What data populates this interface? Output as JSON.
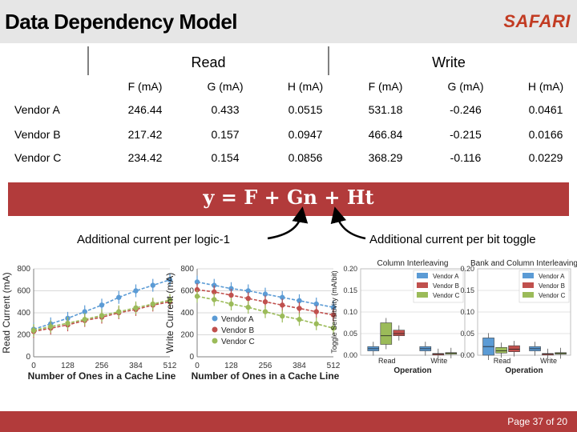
{
  "header": {
    "title": "Data Dependency Model",
    "logo": "SAFARI"
  },
  "table": {
    "groups": [
      "Read",
      "Write"
    ],
    "columns": [
      "F (mA)",
      "G (mA)",
      "H (mA)",
      "F (mA)",
      "G (mA)",
      "H (mA)"
    ],
    "rows": [
      {
        "label": "Vendor A",
        "values": [
          "246.44",
          "0.433",
          "0.0515",
          "531.18",
          "-0.246",
          "0.0461"
        ]
      },
      {
        "label": "Vendor B",
        "values": [
          "217.42",
          "0.157",
          "0.0947",
          "466.84",
          "-0.215",
          "0.0166"
        ]
      },
      {
        "label": "Vendor C",
        "values": [
          "234.42",
          "0.154",
          "0.0856",
          "368.29",
          "-0.116",
          "0.0229"
        ]
      }
    ]
  },
  "equation": "y = F + Gn + Ht",
  "annotations": {
    "left": "Additional current per logic-1",
    "right": "Additional current per bit toggle"
  },
  "colors": {
    "vendor_a": "#5b9bd5",
    "vendor_b": "#c0504d",
    "vendor_c": "#9bbb59",
    "accent": "#b23b3b"
  },
  "chart_data": [
    {
      "type": "line",
      "ylabel": "Read Current (mA)",
      "xlabel": "Number of Ones in a Cache Line",
      "x_ticks": [
        "0",
        "128",
        "256",
        "384",
        "512"
      ],
      "y_ticks": [
        "0",
        "200",
        "400",
        "600",
        "800"
      ],
      "xlim": [
        0,
        512
      ],
      "ylim": [
        0,
        800
      ],
      "series": [
        {
          "x": [
            0,
            64,
            128,
            192,
            256,
            320,
            384,
            448,
            512
          ],
          "values": [
            250,
            300,
            350,
            410,
            470,
            540,
            600,
            650,
            700
          ]
        },
        {
          "x": [
            0,
            64,
            128,
            192,
            256,
            320,
            384,
            448,
            512
          ],
          "values": [
            230,
            260,
            290,
            330,
            360,
            400,
            430,
            470,
            500
          ]
        },
        {
          "x": [
            0,
            64,
            128,
            192,
            256,
            320,
            384,
            448,
            512
          ],
          "values": [
            240,
            275,
            305,
            340,
            375,
            410,
            445,
            480,
            515
          ]
        }
      ]
    },
    {
      "type": "line",
      "ylabel": "Write Current (mA)",
      "xlabel": "Number of Ones in a Cache Line",
      "x_ticks": [
        "0",
        "128",
        "256",
        "384",
        "512"
      ],
      "y_ticks": [
        "0",
        "200",
        "400",
        "600",
        "800"
      ],
      "xlim": [
        0,
        512
      ],
      "ylim": [
        0,
        800
      ],
      "legend": [
        "Vendor A",
        "Vendor B",
        "Vendor C"
      ],
      "series": [
        {
          "name": "Vendor A",
          "x": [
            0,
            64,
            128,
            192,
            256,
            320,
            384,
            448,
            512
          ],
          "values": [
            680,
            650,
            620,
            600,
            570,
            540,
            510,
            480,
            450
          ]
        },
        {
          "name": "Vendor B",
          "x": [
            0,
            64,
            128,
            192,
            256,
            320,
            384,
            448,
            512
          ],
          "values": [
            610,
            590,
            560,
            530,
            500,
            470,
            440,
            410,
            380
          ]
        },
        {
          "name": "Vendor C",
          "x": [
            0,
            64,
            128,
            192,
            256,
            320,
            384,
            448,
            512
          ],
          "values": [
            550,
            520,
            480,
            450,
            410,
            370,
            340,
            300,
            260
          ]
        }
      ]
    },
    {
      "type": "box",
      "title": "Column Interleaving",
      "ylabel": "Toggle Sensitivity (mA/bit)",
      "xlabel": "Operation",
      "categories": [
        "Read",
        "Write"
      ],
      "y_ticks": [
        "0.00",
        "0.05",
        "0.10",
        "0.15",
        "0.20"
      ],
      "ylim": [
        0,
        0.2
      ],
      "legend": [
        "Vendor A",
        "Vendor B",
        "Vendor C"
      ],
      "boxes": [
        {
          "cat": "Read",
          "series": "Vendor A",
          "q1": 0.01,
          "q3": 0.02,
          "med": 0.015
        },
        {
          "cat": "Read",
          "series": "Vendor C",
          "q1": 0.025,
          "q3": 0.075,
          "med": 0.045
        },
        {
          "cat": "Read",
          "series": "Vendor B",
          "q1": 0.045,
          "q3": 0.058,
          "med": 0.05
        },
        {
          "cat": "Write",
          "series": "Vendor A",
          "q1": 0.01,
          "q3": 0.02,
          "med": 0.015
        },
        {
          "cat": "Write",
          "series": "Vendor B",
          "q1": 0.002,
          "q3": 0.004,
          "med": 0.003
        },
        {
          "cat": "Write",
          "series": "Vendor C",
          "q1": 0.004,
          "q3": 0.006,
          "med": 0.005
        }
      ]
    },
    {
      "type": "box",
      "title": "Bank and Column Interleaving",
      "xlabel": "Operation",
      "categories": [
        "Read",
        "Write"
      ],
      "y_ticks": [
        "0.00",
        "0.05",
        "0.10",
        "0.15",
        "0.20"
      ],
      "ylim": [
        0,
        0.2
      ],
      "legend": [
        "Vendor A",
        "Vendor B",
        "Vendor C"
      ],
      "boxes": [
        {
          "cat": "Read",
          "series": "Vendor A",
          "q1": 0.0,
          "q3": 0.04,
          "med": 0.02
        },
        {
          "cat": "Read",
          "series": "Vendor C",
          "q1": 0.005,
          "q3": 0.018,
          "med": 0.01
        },
        {
          "cat": "Read",
          "series": "Vendor B",
          "q1": 0.008,
          "q3": 0.022,
          "med": 0.014
        },
        {
          "cat": "Write",
          "series": "Vendor A",
          "q1": 0.01,
          "q3": 0.02,
          "med": 0.015
        },
        {
          "cat": "Write",
          "series": "Vendor B",
          "q1": 0.002,
          "q3": 0.004,
          "med": 0.003
        },
        {
          "cat": "Write",
          "series": "Vendor C",
          "q1": 0.003,
          "q3": 0.006,
          "med": 0.004
        }
      ]
    }
  ],
  "footer": {
    "page": "Page 37 of 20"
  }
}
